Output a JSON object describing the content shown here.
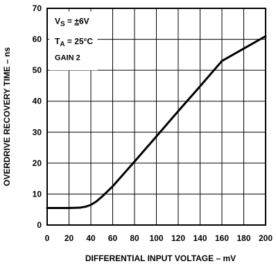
{
  "chart_data": {
    "type": "line",
    "xlabel": "DIFFERENTIAL INPUT VOLTAGE – mV",
    "ylabel": "OVERDRIVE RECOVERY TIME – ns",
    "xlim": [
      0,
      200
    ],
    "ylim": [
      0,
      70
    ],
    "x_ticks": [
      "0",
      "20",
      "40",
      "60",
      "80",
      "100",
      "120",
      "140",
      "160",
      "180",
      "200"
    ],
    "y_ticks": [
      "0",
      "10",
      "20",
      "30",
      "40",
      "50",
      "60",
      "70"
    ],
    "grid": true,
    "series": [
      {
        "x": [
          0,
          10,
          20,
          30,
          35,
          40,
          45,
          50,
          55,
          60,
          80,
          100,
          120,
          140,
          160,
          180,
          200
        ],
        "y": [
          5.5,
          5.5,
          5.5,
          5.6,
          5.9,
          6.5,
          7.6,
          9.1,
          10.8,
          12.5,
          20.5,
          28.6,
          36.8,
          44.8,
          53.0,
          57.0,
          61.0
        ]
      }
    ],
    "annotations": {
      "vs_main": "V",
      "vs_sub": "S",
      "vs_rest": " = ",
      "vs_pm": "±",
      "vs_val": "6V",
      "ta_main": "T",
      "ta_sub": "A",
      "ta_rest": " = 25°C",
      "gain": "GAIN 2"
    }
  }
}
